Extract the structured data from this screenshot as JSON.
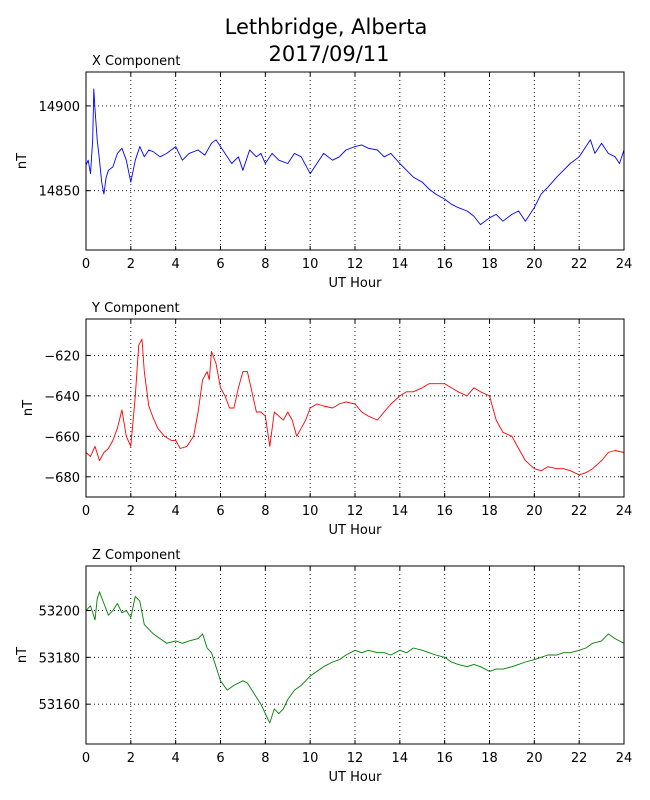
{
  "figure": {
    "title_line1": "Lethbridge, Alberta",
    "title_line2": "2017/09/11"
  },
  "chart_data": [
    {
      "type": "line",
      "title": "X Component",
      "xlabel": "UT Hour",
      "ylabel": "nT",
      "xlim": [
        0,
        24
      ],
      "ylim": [
        14815,
        14920
      ],
      "xticks": [
        0,
        2,
        4,
        6,
        8,
        10,
        12,
        14,
        16,
        18,
        20,
        22,
        24
      ],
      "yticks": [
        14850,
        14900
      ],
      "grid": true,
      "color": "#0000ff",
      "series": [
        {
          "x": [
            0,
            0.1,
            0.2,
            0.3,
            0.35,
            0.4,
            0.5,
            0.6,
            0.7,
            0.8,
            0.9,
            1.0,
            1.2,
            1.4,
            1.6,
            1.8,
            2.0,
            2.2,
            2.4,
            2.6,
            2.8,
            3.0,
            3.3,
            3.6,
            4.0,
            4.3,
            4.6,
            5.0,
            5.3,
            5.6,
            5.8,
            6.0,
            6.2,
            6.5,
            6.8,
            7.0,
            7.3,
            7.6,
            7.8,
            8.0,
            8.3,
            8.6,
            9.0,
            9.3,
            9.6,
            10.0,
            10.3,
            10.6,
            11.0,
            11.3,
            11.6,
            12.0,
            12.3,
            12.6,
            13.0,
            13.3,
            13.6,
            14.0,
            14.3,
            14.6,
            15.0,
            15.3,
            15.6,
            16.0,
            16.3,
            16.6,
            17.0,
            17.3,
            17.6,
            18.0,
            18.3,
            18.6,
            19.0,
            19.3,
            19.6,
            20.0,
            20.3,
            20.6,
            21.0,
            21.3,
            21.6,
            22.0,
            22.3,
            22.5,
            22.7,
            23.0,
            23.3,
            23.6,
            23.8,
            24.0
          ],
          "y": [
            14865,
            14868,
            14860,
            14880,
            14910,
            14898,
            14880,
            14868,
            14855,
            14848,
            14858,
            14862,
            14864,
            14872,
            14875,
            14868,
            14855,
            14868,
            14876,
            14870,
            14874,
            14873,
            14870,
            14872,
            14876,
            14868,
            14872,
            14874,
            14871,
            14878,
            14880,
            14876,
            14872,
            14866,
            14870,
            14862,
            14874,
            14870,
            14872,
            14866,
            14872,
            14868,
            14866,
            14872,
            14870,
            14860,
            14866,
            14872,
            14868,
            14870,
            14874,
            14876,
            14877,
            14875,
            14874,
            14870,
            14872,
            14866,
            14862,
            14858,
            14855,
            14851,
            14848,
            14845,
            14842,
            14840,
            14838,
            14835,
            14830,
            14834,
            14836,
            14832,
            14836,
            14838,
            14832,
            14840,
            14848,
            14852,
            14858,
            14862,
            14866,
            14870,
            14876,
            14880,
            14872,
            14878,
            14872,
            14870,
            14866,
            14874
          ]
        }
      ]
    },
    {
      "type": "line",
      "title": "Y Component",
      "xlabel": "UT Hour",
      "ylabel": "nT",
      "xlim": [
        0,
        24
      ],
      "ylim": [
        -690,
        -602
      ],
      "xticks": [
        0,
        2,
        4,
        6,
        8,
        10,
        12,
        14,
        16,
        18,
        20,
        22,
        24
      ],
      "yticks": [
        -680,
        -660,
        -640,
        -620
      ],
      "grid": true,
      "color": "#ff0000",
      "series": [
        {
          "x": [
            0,
            0.2,
            0.4,
            0.6,
            0.8,
            1.0,
            1.2,
            1.4,
            1.6,
            1.8,
            2.0,
            2.2,
            2.35,
            2.5,
            2.6,
            2.8,
            3.0,
            3.2,
            3.5,
            3.8,
            4.0,
            4.2,
            4.5,
            4.8,
            5.0,
            5.2,
            5.4,
            5.5,
            5.6,
            5.8,
            6.0,
            6.2,
            6.4,
            6.6,
            6.8,
            7.0,
            7.2,
            7.4,
            7.6,
            7.8,
            8.0,
            8.2,
            8.4,
            8.6,
            8.8,
            9.0,
            9.2,
            9.4,
            9.6,
            9.8,
            10.0,
            10.3,
            10.6,
            11.0,
            11.3,
            11.6,
            12.0,
            12.3,
            12.6,
            13.0,
            13.3,
            13.6,
            14.0,
            14.3,
            14.6,
            15.0,
            15.3,
            15.6,
            16.0,
            16.3,
            16.6,
            17.0,
            17.3,
            17.6,
            18.0,
            18.3,
            18.6,
            19.0,
            19.3,
            19.6,
            20.0,
            20.3,
            20.6,
            21.0,
            21.3,
            21.6,
            22.0,
            22.3,
            22.6,
            23.0,
            23.3,
            23.6,
            24.0
          ],
          "y": [
            -668,
            -670,
            -665,
            -672,
            -668,
            -666,
            -662,
            -656,
            -647,
            -660,
            -665,
            -640,
            -615,
            -612,
            -628,
            -645,
            -651,
            -656,
            -660,
            -662,
            -662,
            -666,
            -665,
            -660,
            -648,
            -632,
            -628,
            -632,
            -618,
            -624,
            -636,
            -640,
            -646,
            -646,
            -636,
            -628,
            -628,
            -638,
            -648,
            -648,
            -650,
            -665,
            -648,
            -650,
            -652,
            -648,
            -652,
            -660,
            -656,
            -652,
            -646,
            -644,
            -645,
            -646,
            -644,
            -643,
            -644,
            -648,
            -650,
            -652,
            -648,
            -644,
            -640,
            -638,
            -638,
            -636,
            -634,
            -634,
            -634,
            -636,
            -638,
            -640,
            -636,
            -638,
            -640,
            -652,
            -658,
            -660,
            -666,
            -672,
            -676,
            -677,
            -675,
            -676,
            -676,
            -677,
            -679,
            -678,
            -676,
            -672,
            -668,
            -667,
            -668
          ]
        }
      ]
    },
    {
      "type": "line",
      "title": "Z Component",
      "xlabel": "UT Hour",
      "ylabel": "nT",
      "xlim": [
        0,
        24
      ],
      "ylim": [
        53143,
        53219
      ],
      "xticks": [
        0,
        2,
        4,
        6,
        8,
        10,
        12,
        14,
        16,
        18,
        20,
        22,
        24
      ],
      "yticks": [
        53160,
        53180,
        53200
      ],
      "grid": true,
      "color": "#008000",
      "series": [
        {
          "x": [
            0,
            0.2,
            0.4,
            0.5,
            0.6,
            0.8,
            1.0,
            1.2,
            1.4,
            1.6,
            1.8,
            2.0,
            2.2,
            2.4,
            2.6,
            2.8,
            3.0,
            3.3,
            3.6,
            4.0,
            4.3,
            4.6,
            5.0,
            5.2,
            5.4,
            5.6,
            5.8,
            6.0,
            6.3,
            6.6,
            7.0,
            7.2,
            7.4,
            7.6,
            7.8,
            8.0,
            8.2,
            8.4,
            8.6,
            8.8,
            9.0,
            9.3,
            9.6,
            10.0,
            10.3,
            10.6,
            11.0,
            11.3,
            11.6,
            12.0,
            12.3,
            12.6,
            13.0,
            13.3,
            13.6,
            14.0,
            14.3,
            14.6,
            15.0,
            15.3,
            15.6,
            16.0,
            16.3,
            16.6,
            17.0,
            17.3,
            17.6,
            18.0,
            18.3,
            18.6,
            19.0,
            19.3,
            19.6,
            20.0,
            20.3,
            20.6,
            21.0,
            21.3,
            21.6,
            22.0,
            22.3,
            22.6,
            23.0,
            23.3,
            23.6,
            24.0
          ],
          "y": [
            53200,
            53202,
            53196,
            53205,
            53208,
            53203,
            53198,
            53200,
            53203,
            53199,
            53200,
            53197,
            53206,
            53204,
            53194,
            53192,
            53190,
            53188,
            53186,
            53187,
            53186,
            53187,
            53188,
            53190,
            53184,
            53182,
            53176,
            53170,
            53166,
            53168,
            53170,
            53169,
            53166,
            53163,
            53160,
            53156,
            53152,
            53158,
            53156,
            53158,
            53162,
            53166,
            53168,
            53172,
            53174,
            53176,
            53178,
            53179,
            53181,
            53183,
            53182,
            53183,
            53182,
            53182,
            53181,
            53183,
            53182,
            53184,
            53183,
            53182,
            53181,
            53180,
            53178,
            53177,
            53176,
            53177,
            53176,
            53174,
            53175,
            53175,
            53176,
            53177,
            53178,
            53179,
            53180,
            53181,
            53181,
            53182,
            53182,
            53183,
            53184,
            53186,
            53187,
            53190,
            53188,
            53186
          ]
        }
      ]
    }
  ]
}
